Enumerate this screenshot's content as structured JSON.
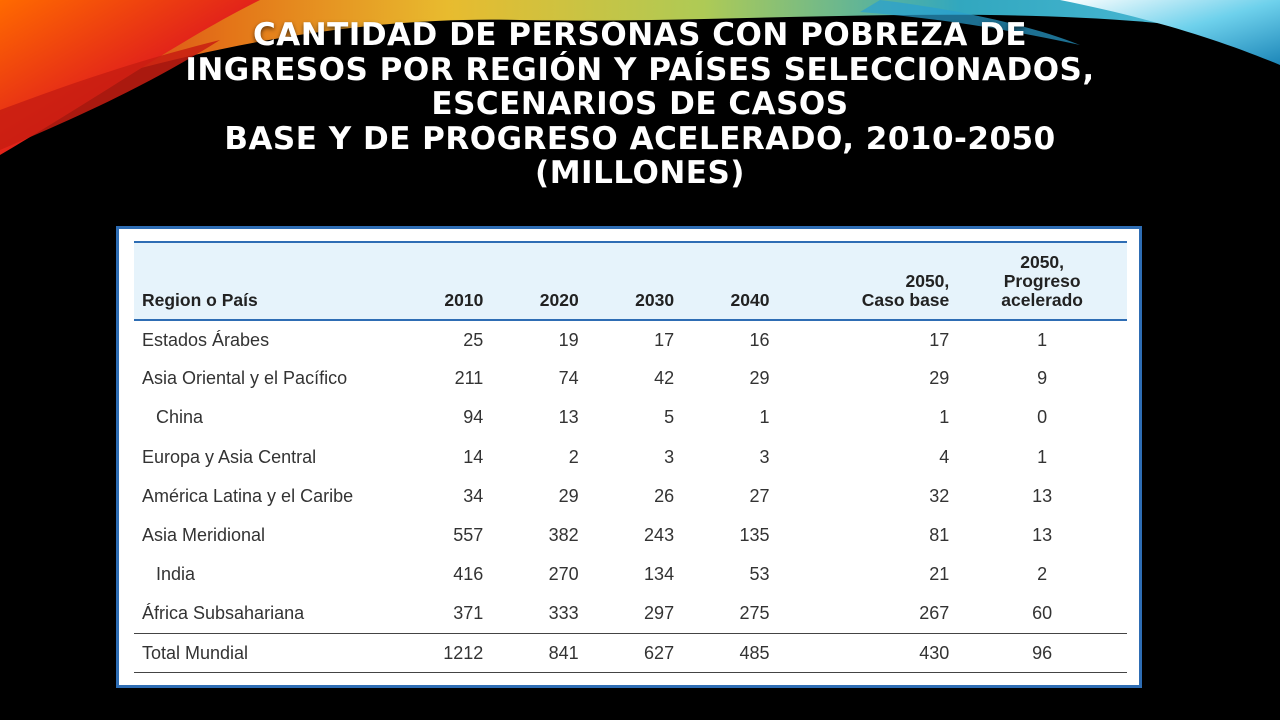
{
  "slide": {
    "title_lines": [
      "CANTIDAD DE PERSONAS CON POBREZA DE",
      "INGRESOS POR REGIÓN Y PAÍSES SELECCIONADOS,",
      "ESCENARIOS DE CASOS",
      "BASE Y DE PROGRESO ACELERADO, 2010-2050",
      "(MILLONES)"
    ]
  },
  "table": {
    "headers": [
      "Region o País",
      "2010",
      "2020",
      "2030",
      "2040",
      "2050,\nCaso base",
      "2050,\nProgreso\nacelerado"
    ],
    "rows": [
      {
        "name": "Estados Árabes",
        "indent": false,
        "values": [
          "25",
          "19",
          "17",
          "16",
          "17",
          "1"
        ]
      },
      {
        "name": "Asia Oriental y el Pacífico",
        "indent": false,
        "values": [
          "211",
          "74",
          "42",
          "29",
          "29",
          "9"
        ]
      },
      {
        "name": "China",
        "indent": true,
        "values": [
          "94",
          "13",
          "5",
          "1",
          "1",
          "0"
        ]
      },
      {
        "name": "Europa y Asia Central",
        "indent": false,
        "values": [
          "14",
          "2",
          "3",
          "3",
          "4",
          "1"
        ]
      },
      {
        "name": "América Latina y el Caribe",
        "indent": false,
        "values": [
          "34",
          "29",
          "26",
          "27",
          "32",
          "13"
        ]
      },
      {
        "name": "Asia Meridional",
        "indent": false,
        "values": [
          "557",
          "382",
          "243",
          "135",
          "81",
          "13"
        ]
      },
      {
        "name": "India",
        "indent": true,
        "values": [
          "416",
          "270",
          "134",
          "53",
          "21",
          "2"
        ]
      },
      {
        "name": "África Subsahariana",
        "indent": false,
        "values": [
          "371",
          "333",
          "297",
          "275",
          "267",
          "60"
        ]
      }
    ],
    "total": {
      "name": "Total Mundial",
      "values": [
        "1212",
        "841",
        "627",
        "485",
        "430",
        "96"
      ]
    }
  },
  "colors": {
    "frame": "#2e6db4",
    "header_bg": "#e6f3fb",
    "background": "#000000"
  }
}
